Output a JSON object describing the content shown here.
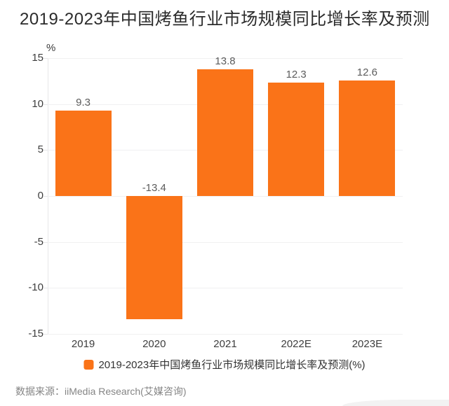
{
  "page": {
    "source_note": "数据来源：iiMedia Research(艾媒咨询)"
  },
  "chart_data": {
    "type": "bar",
    "title": "2019-2023年中国烤鱼行业市场规模同比增长率及预测",
    "categories": [
      "2019",
      "2020",
      "2021",
      "2022E",
      "2023E"
    ],
    "values": [
      9.3,
      -13.4,
      13.8,
      12.3,
      12.6
    ],
    "xlabel": "",
    "ylabel": "%",
    "ylim": [
      -15,
      15
    ],
    "ytick_step": 5,
    "grid": true,
    "value_labels": "shown above bars",
    "legend": {
      "label": "2019-2023年中国烤鱼行业市场规模同比增长率及预测(%)",
      "position": "bottom"
    }
  },
  "colors": {
    "accent_orange": "#fa7318",
    "title_text": "#2b2b2b",
    "axis_text": "#3d3d3d",
    "value_label_text": "#5c5c5c",
    "legend_text": "#333333",
    "gridline": "#f0f0f1",
    "axis_line": "#e6e6e8",
    "source_text": "#858585",
    "decor_shape": "#f2f2f2"
  }
}
